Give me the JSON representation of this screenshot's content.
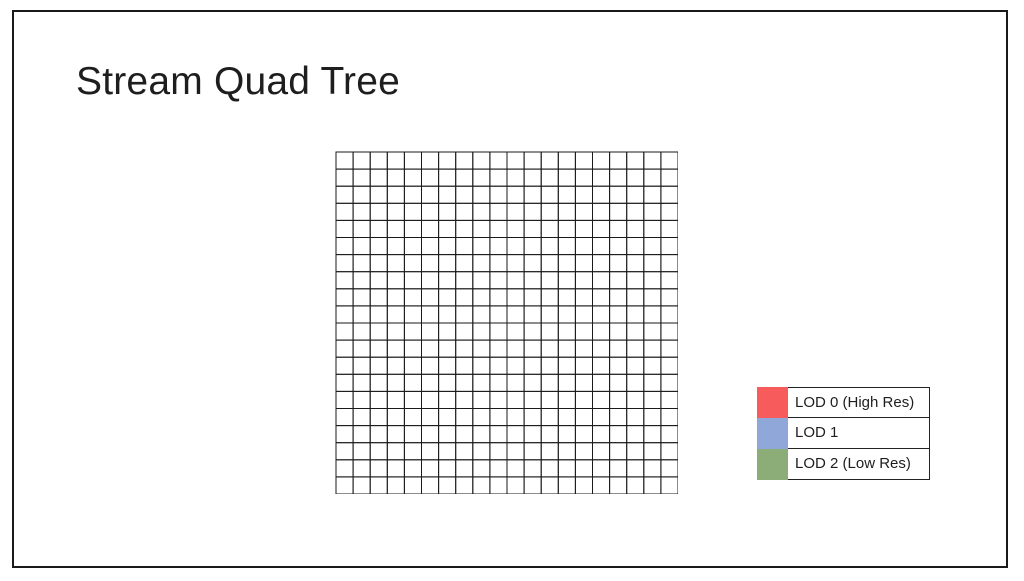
{
  "slide": {
    "title": "Stream Quad Tree"
  },
  "diagram": {
    "grid_size": 20,
    "tile_grid": [
      "WWSSSSSSSSSSSSWWWWWW",
      "WWSSSSSSSSSSSSWWWWWW",
      "WWSSSSSSSSSSSSWWWWWW",
      "WWSSSSSSSSSSSSWWWWWW",
      "WWSSSSSSSSSSSSWWWWWW",
      "WWSSSSSSSSSSSSWWWWWW",
      "WWSSSSSSSSSSSSWWWWWW",
      "WWSSSSSRRRRRSSWWWWWW",
      "SSSSSSSRRRRRSSSSSSSS",
      "SSSSSSSRRRRRSSSSSSSS",
      "SSSSSSSRRRRRSSSSSSSS",
      "SSSSSSSRRRRRSSSSSSSS",
      "SSSSSSSSSSSSSSSSSSSS",
      "SSSSSSSSSSSSSSSSSSSS",
      "SSSSSSSSSSSSSSSSSSSS",
      "SSSSSSSSSSSSSSSSSSSS",
      "WWSSSSSSSSSSSSSSSSSS",
      "WWSSSSSSSSSSSSSSSSSS",
      "WWWWWWSSSSSSSSSSSSSS",
      "WWWWWWSSSSSSSSSSSSSS"
    ],
    "tile_legend": {
      "W": "empty",
      "S": "streamed-terrain",
      "R": "lod-0-high-res"
    },
    "colors": {
      "terrain": "#7d7f72",
      "lod0_tile": "#e8343a",
      "grid_line": "#1a1a1a"
    }
  },
  "legend": {
    "items": [
      {
        "label": "LOD 0 (High Res)",
        "color": "#f85b5b"
      },
      {
        "label": "LOD 1",
        "color": "#8fa7d9"
      },
      {
        "label": "LOD 2 (Low Res)",
        "color": "#8cad78"
      }
    ]
  }
}
